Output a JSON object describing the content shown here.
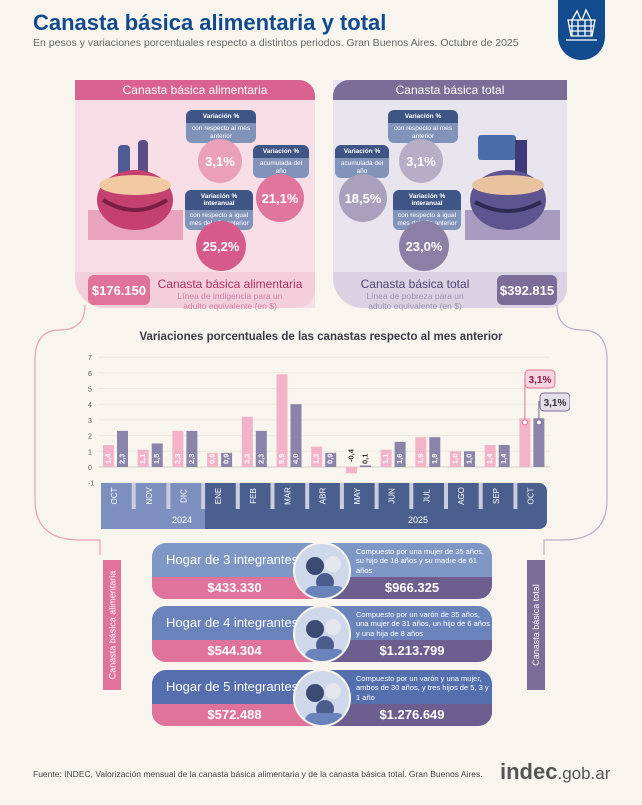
{
  "header": {
    "title": "Canasta básica alimentaria y total",
    "subtitle": "En pesos y variaciones porcentuales respecto a distintos periodos. Gran Buenos Aires. Octubre de 2025",
    "badge_icon": "basket-icon"
  },
  "cba": {
    "header": "Canasta básica alimentaria",
    "color": "#d9628f",
    "monthly": {
      "title": "Variación %",
      "sub": "con respecto al mes anterior",
      "value": "3,1%"
    },
    "ytd": {
      "title": "Variación %",
      "sub": "acumulada del año",
      "value": "21,1%"
    },
    "yoy": {
      "title": "Variación % interanual",
      "sub": "con respecto a igual mes del año anterior",
      "value": "25,2%"
    },
    "amount": "$176.150",
    "label": "Canasta básica alimentaria",
    "desc": "Línea de indigencia para un adulto equivalente (en $)"
  },
  "cbt": {
    "header": "Canasta básica total",
    "color": "#7b6d97",
    "monthly": {
      "title": "Variación %",
      "sub": "con respecto al mes anterior",
      "value": "3,1%"
    },
    "ytd": {
      "title": "Variación %",
      "sub": "acumulada del año",
      "value": "18,5%"
    },
    "yoy": {
      "title": "Variación % interanual",
      "sub": "con respecto a igual mes del año anterior",
      "value": "23,0%"
    },
    "amount": "$392.815",
    "label": "Canasta básica total",
    "desc": "Línea de pobreza para un adulto equivalente (en $)"
  },
  "chart_data": {
    "type": "bar",
    "title": "Variaciones porcentuales de las canastas respecto al mes anterior",
    "categories": [
      "OCT",
      "NOV",
      "DIC",
      "ENE",
      "FEB",
      "MAR",
      "ABR",
      "MAY",
      "JUN",
      "JUL",
      "AGO",
      "SEP",
      "OCT"
    ],
    "years": [
      {
        "label": "2024",
        "months": 3
      },
      {
        "label": "2025",
        "months": 10
      }
    ],
    "series": [
      {
        "key": "cba",
        "color": "#f2b3c8",
        "values": [
          1.4,
          1.1,
          2.3,
          0.9,
          3.2,
          5.9,
          1.3,
          -0.4,
          1.1,
          1.9,
          1.0,
          1.4,
          3.1
        ],
        "labels": [
          "1,4",
          "1,1",
          "2,3",
          "0,9",
          "3,2",
          "5,9",
          "1,3",
          "-0,4",
          "1,1",
          "1,9",
          "1,0",
          "1,4",
          ""
        ]
      },
      {
        "key": "cbt",
        "color": "#8a83aa",
        "values": [
          2.3,
          1.5,
          2.3,
          0.9,
          2.3,
          4.0,
          0.9,
          0.1,
          1.6,
          1.9,
          1.0,
          1.4,
          3.1
        ],
        "labels": [
          "2,3",
          "1,5",
          "2,3",
          "0,9",
          "2,3",
          "4,0",
          "0,9",
          "0,1",
          "1,6",
          "1,9",
          "1,0",
          "1,4",
          ""
        ]
      }
    ],
    "callouts": [
      "3,1%",
      "3,1%"
    ],
    "yticks": [
      -1,
      0,
      1,
      2,
      3,
      4,
      5,
      6,
      7
    ],
    "ylim": [
      -1,
      7
    ],
    "grid": true
  },
  "households": [
    {
      "label": "Hogar de 3 integrantes",
      "cba": "$433.330",
      "cbt": "$966.325",
      "desc": "Compuesto por una mujer de 35 años, su hijo de 18 años y su madre de 61 años",
      "color": "#7f97c4"
    },
    {
      "label": "Hogar de 4 integrantes",
      "cba": "$544.304",
      "cbt": "$1.213.799",
      "desc": "Compuesto por un varón de 35 años, una mujer de 31 años, un hijo de 6 años y una hija de 8 años",
      "color": "#6a84bb"
    },
    {
      "label": "Hogar de 5 integrantes",
      "cba": "$572.488",
      "cbt": "$1.276.649",
      "desc": "Compuesto por un varón y una mujer, ambos de 30 años, y tres hijos de 5, 3 y 1 año",
      "color": "#556fae"
    }
  ],
  "side": {
    "left": "Canasta básica alimentaria",
    "right": "Canasta básica total"
  },
  "footer": {
    "source": "Fuente: INDEC, Valorización mensual de la canasta básica alimentaria y de la canasta básica total. Gran Buenos Aires.",
    "logo": "indec.gob.ar"
  }
}
